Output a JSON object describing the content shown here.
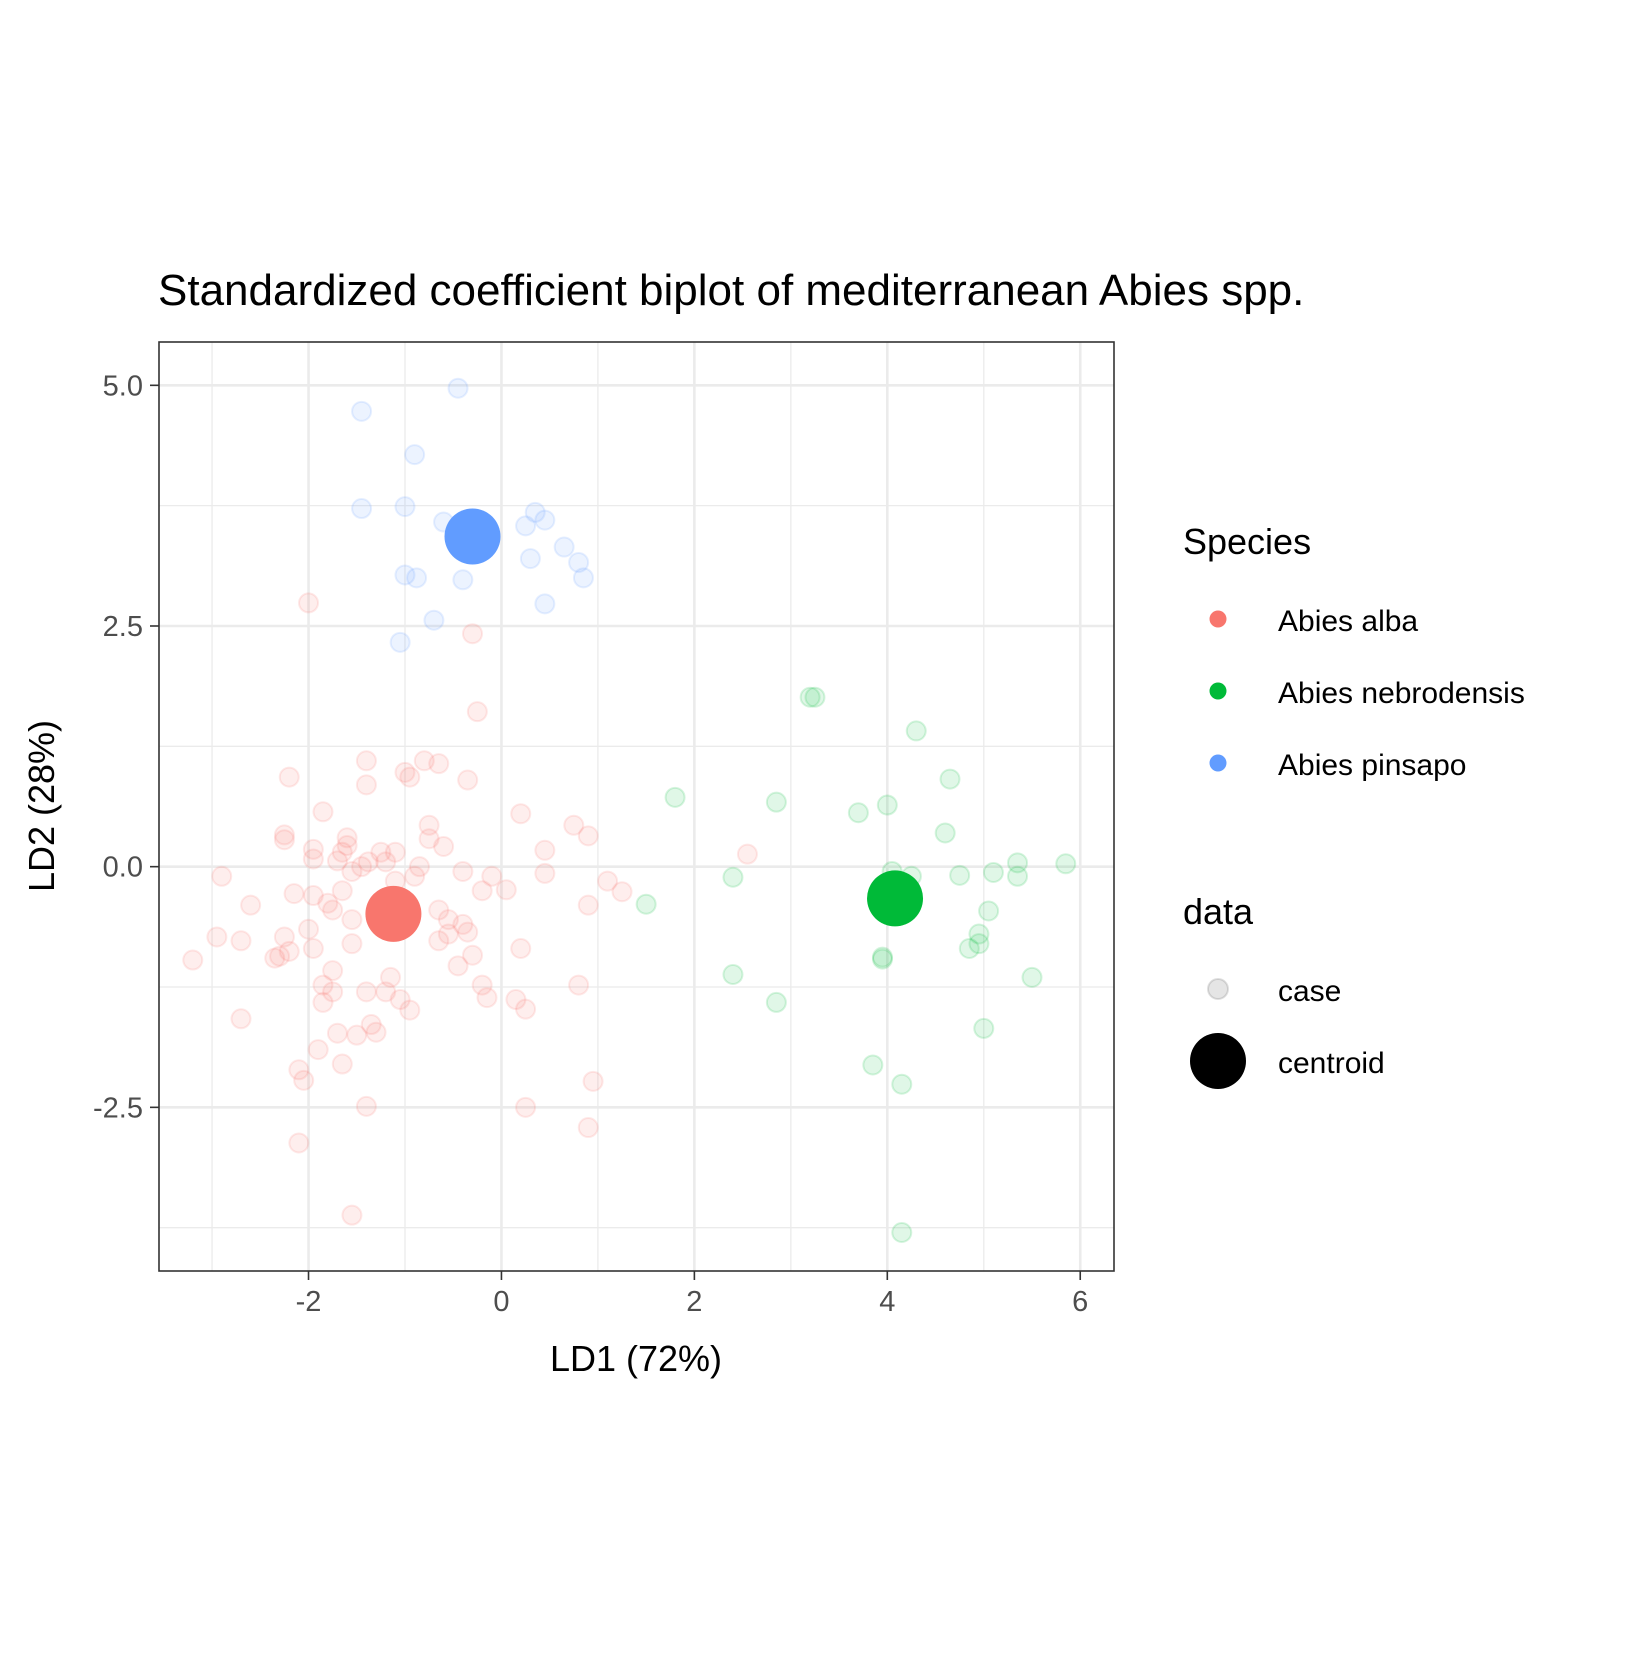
{
  "chart_data": {
    "type": "scatter",
    "title": "Standardized coefficient biplot of mediterranean Abies spp.",
    "xlabel": "LD1 (72%)",
    "ylabel": "LD2 (28%)",
    "xlim": [
      -3.55,
      6.35
    ],
    "ylim": [
      -4.2,
      5.45
    ],
    "x_ticks": [
      -2,
      0,
      2,
      4,
      6
    ],
    "x_tick_labels": [
      "-2",
      "0",
      "2",
      "4",
      "6"
    ],
    "y_ticks": [
      -2.5,
      0,
      2.5,
      5
    ],
    "y_tick_labels": [
      "-2.5",
      "0.0",
      "2.5",
      "5.0"
    ],
    "x_minor_grid": [
      -3,
      -1,
      1,
      3,
      5
    ],
    "y_minor_grid": [
      -3.75,
      -1.25,
      1.25,
      3.75
    ],
    "grid": true,
    "legend_position": "right",
    "legend": {
      "species_title": "Species",
      "species_entries": [
        "Abies alba",
        "Abies nebrodensis",
        "Abies pinsapo"
      ],
      "data_title": "data",
      "data_entries": [
        "case",
        "centroid"
      ]
    },
    "colors": {
      "Abies alba": "#F8766D",
      "Abies nebrodensis": "#00BA38",
      "Abies pinsapo": "#619CFF"
    },
    "series": [
      {
        "name": "Abies alba",
        "kind": "case",
        "points": [
          [
            -3.2,
            -0.97
          ],
          [
            -2.9,
            -0.1
          ],
          [
            -2.95,
            -0.73
          ],
          [
            -2.7,
            -0.77
          ],
          [
            -2.6,
            -0.4
          ],
          [
            -2.7,
            -1.58
          ],
          [
            -2.35,
            -0.95
          ],
          [
            -2.3,
            -0.93
          ],
          [
            -2.25,
            0.28
          ],
          [
            -2.25,
            0.33
          ],
          [
            -2.2,
            0.93
          ],
          [
            -2.25,
            -0.73
          ],
          [
            -2.15,
            -0.28
          ],
          [
            -2.2,
            -0.88
          ],
          [
            -2.1,
            -2.11
          ],
          [
            -2.1,
            -2.87
          ],
          [
            -2.05,
            -2.22
          ],
          [
            -2.0,
            2.74
          ],
          [
            -2.0,
            -0.65
          ],
          [
            -1.95,
            -0.3
          ],
          [
            -1.95,
            0.18
          ],
          [
            -1.95,
            0.08
          ],
          [
            -1.95,
            -0.85
          ],
          [
            -1.9,
            -1.9
          ],
          [
            -1.85,
            0.57
          ],
          [
            -1.85,
            -1.23
          ],
          [
            -1.85,
            -1.41
          ],
          [
            -1.8,
            -0.38
          ],
          [
            -1.75,
            -0.45
          ],
          [
            -1.75,
            -1.08
          ],
          [
            -1.75,
            -1.3
          ],
          [
            -1.7,
            -1.73
          ],
          [
            -1.7,
            0.06
          ],
          [
            -1.65,
            -0.25
          ],
          [
            -1.65,
            -2.05
          ],
          [
            -1.65,
            0.15
          ],
          [
            -1.6,
            0.3
          ],
          [
            -1.6,
            0.22
          ],
          [
            -1.55,
            -0.55
          ],
          [
            -1.55,
            -0.8
          ],
          [
            -1.55,
            -0.05
          ],
          [
            -1.5,
            -1.75
          ],
          [
            -1.55,
            -3.62
          ],
          [
            -1.45,
            0.0
          ],
          [
            -1.4,
            1.1
          ],
          [
            -1.4,
            0.85
          ],
          [
            -1.4,
            -1.3
          ],
          [
            -1.4,
            -2.49
          ],
          [
            -1.38,
            0.05
          ],
          [
            -1.35,
            -1.64
          ],
          [
            -1.3,
            -1.72
          ],
          [
            -1.25,
            0.15
          ],
          [
            -1.2,
            -1.3
          ],
          [
            -1.2,
            0.05
          ],
          [
            -1.15,
            -1.15
          ],
          [
            -1.1,
            0.15
          ],
          [
            -1.1,
            -0.15
          ],
          [
            -1.05,
            -1.38
          ],
          [
            -1.0,
            0.98
          ],
          [
            -0.95,
            0.93
          ],
          [
            -0.95,
            -1.49
          ],
          [
            -0.9,
            -0.1
          ],
          [
            -0.85,
            0.0
          ],
          [
            -0.8,
            1.1
          ],
          [
            -0.75,
            0.43
          ],
          [
            -0.75,
            0.29
          ],
          [
            -0.65,
            1.07
          ],
          [
            -0.65,
            -0.45
          ],
          [
            -0.65,
            -0.77
          ],
          [
            -0.6,
            0.21
          ],
          [
            -0.55,
            -0.7
          ],
          [
            -0.55,
            -0.55
          ],
          [
            -0.45,
            -1.03
          ],
          [
            -0.4,
            -0.05
          ],
          [
            -0.4,
            -0.6
          ],
          [
            -0.35,
            0.9
          ],
          [
            -0.35,
            -0.68
          ],
          [
            -0.3,
            2.42
          ],
          [
            -0.3,
            -0.92
          ],
          [
            -0.25,
            1.61
          ],
          [
            -0.2,
            -0.25
          ],
          [
            -0.2,
            -1.23
          ],
          [
            -0.15,
            -1.36
          ],
          [
            -0.1,
            -0.1
          ],
          [
            0.05,
            -0.24
          ],
          [
            0.15,
            -1.38
          ],
          [
            0.2,
            -0.85
          ],
          [
            0.2,
            0.55
          ],
          [
            0.25,
            -1.48
          ],
          [
            0.25,
            -2.5
          ],
          [
            0.45,
            0.17
          ],
          [
            0.45,
            -0.07
          ],
          [
            0.75,
            0.43
          ],
          [
            0.8,
            -1.23
          ],
          [
            0.9,
            0.32
          ],
          [
            0.9,
            -0.4
          ],
          [
            0.9,
            -2.71
          ],
          [
            0.95,
            -2.23
          ],
          [
            1.1,
            -0.15
          ],
          [
            1.25,
            -0.26
          ],
          [
            2.55,
            0.13
          ]
        ]
      },
      {
        "name": "Abies nebrodensis",
        "kind": "case",
        "points": [
          [
            1.5,
            -0.39
          ],
          [
            1.8,
            0.72
          ],
          [
            2.4,
            -0.11
          ],
          [
            2.4,
            -1.12
          ],
          [
            2.85,
            0.67
          ],
          [
            2.85,
            -1.41
          ],
          [
            3.2,
            1.76
          ],
          [
            3.25,
            1.76
          ],
          [
            3.7,
            0.56
          ],
          [
            3.85,
            -2.06
          ],
          [
            3.95,
            -0.94
          ],
          [
            3.95,
            -0.96
          ],
          [
            4.0,
            0.64
          ],
          [
            4.05,
            -0.05
          ],
          [
            4.15,
            -2.26
          ],
          [
            4.15,
            -3.8
          ],
          [
            4.25,
            -0.1
          ],
          [
            4.3,
            1.41
          ],
          [
            4.6,
            0.35
          ],
          [
            4.65,
            0.91
          ],
          [
            4.75,
            -0.09
          ],
          [
            4.85,
            -0.85
          ],
          [
            4.95,
            -0.8
          ],
          [
            4.95,
            -0.7
          ],
          [
            5.0,
            -1.68
          ],
          [
            5.05,
            -0.46
          ],
          [
            5.1,
            -0.06
          ],
          [
            5.35,
            0.04
          ],
          [
            5.35,
            -0.1
          ],
          [
            5.5,
            -1.15
          ],
          [
            5.85,
            0.03
          ]
        ]
      },
      {
        "name": "Abies pinsapo",
        "kind": "case",
        "points": [
          [
            -1.45,
            4.73
          ],
          [
            -1.45,
            3.72
          ],
          [
            -1.05,
            2.33
          ],
          [
            -1.0,
            3.74
          ],
          [
            -1.0,
            3.03
          ],
          [
            -0.9,
            4.28
          ],
          [
            -0.88,
            3.0
          ],
          [
            -0.7,
            2.56
          ],
          [
            -0.6,
            3.58
          ],
          [
            -0.45,
            4.97
          ],
          [
            -0.4,
            2.98
          ],
          [
            0.25,
            3.54
          ],
          [
            0.3,
            3.2
          ],
          [
            0.35,
            3.68
          ],
          [
            0.45,
            3.6
          ],
          [
            0.45,
            2.73
          ],
          [
            0.65,
            3.32
          ],
          [
            0.8,
            3.16
          ],
          [
            0.85,
            3.0
          ]
        ]
      },
      {
        "name": "Abies alba",
        "kind": "centroid",
        "points": [
          [
            -1.12,
            -0.49
          ]
        ]
      },
      {
        "name": "Abies nebrodensis",
        "kind": "centroid",
        "points": [
          [
            4.08,
            -0.33
          ]
        ]
      },
      {
        "name": "Abies pinsapo",
        "kind": "centroid",
        "points": [
          [
            -0.3,
            3.43
          ]
        ]
      }
    ]
  }
}
